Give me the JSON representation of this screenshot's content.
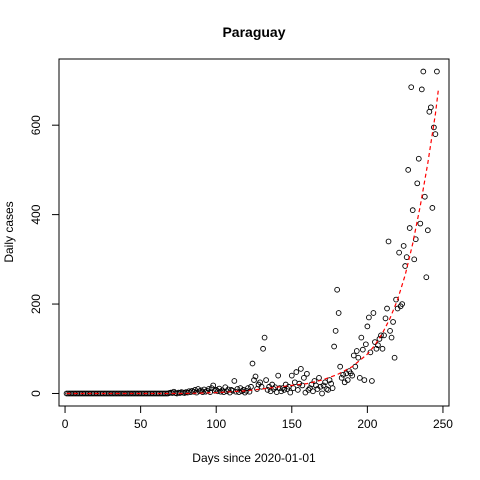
{
  "chart_data": {
    "type": "scatter",
    "title": "Paraguay",
    "xlabel": "Days since 2020-01-01",
    "ylabel": "Daily cases",
    "xlim": [
      -4,
      254
    ],
    "ylim": [
      -28,
      748
    ],
    "x_ticks": [
      0,
      50,
      100,
      150,
      200,
      250
    ],
    "y_ticks": [
      0,
      200,
      400,
      600
    ],
    "x_tick_labels": [
      "0",
      "50",
      "100",
      "150",
      "200",
      "250"
    ],
    "y_tick_labels": [
      "0",
      "200",
      "400",
      "600"
    ],
    "grid": false,
    "legend": "none",
    "series": [
      {
        "kind": "points",
        "marker": "open-circle",
        "color": "#000000",
        "points": [
          [
            1,
            0
          ],
          [
            2,
            0
          ],
          [
            3,
            0
          ],
          [
            4,
            0
          ],
          [
            5,
            0
          ],
          [
            6,
            0
          ],
          [
            7,
            0
          ],
          [
            8,
            0
          ],
          [
            9,
            0
          ],
          [
            10,
            0
          ],
          [
            11,
            0
          ],
          [
            12,
            0
          ],
          [
            13,
            0
          ],
          [
            14,
            0
          ],
          [
            15,
            0
          ],
          [
            16,
            0
          ],
          [
            17,
            0
          ],
          [
            18,
            0
          ],
          [
            19,
            0
          ],
          [
            20,
            0
          ],
          [
            21,
            0
          ],
          [
            22,
            0
          ],
          [
            23,
            0
          ],
          [
            24,
            0
          ],
          [
            25,
            0
          ],
          [
            26,
            0
          ],
          [
            27,
            0
          ],
          [
            28,
            0
          ],
          [
            29,
            0
          ],
          [
            30,
            0
          ],
          [
            31,
            0
          ],
          [
            32,
            0
          ],
          [
            33,
            0
          ],
          [
            34,
            0
          ],
          [
            35,
            0
          ],
          [
            36,
            0
          ],
          [
            37,
            0
          ],
          [
            38,
            0
          ],
          [
            39,
            0
          ],
          [
            40,
            0
          ],
          [
            41,
            0
          ],
          [
            42,
            0
          ],
          [
            43,
            0
          ],
          [
            44,
            0
          ],
          [
            45,
            0
          ],
          [
            46,
            0
          ],
          [
            47,
            0
          ],
          [
            48,
            0
          ],
          [
            49,
            0
          ],
          [
            50,
            0
          ],
          [
            51,
            0
          ],
          [
            52,
            0
          ],
          [
            53,
            0
          ],
          [
            54,
            0
          ],
          [
            55,
            0
          ],
          [
            56,
            0
          ],
          [
            57,
            0
          ],
          [
            58,
            0
          ],
          [
            59,
            0
          ],
          [
            60,
            0
          ],
          [
            61,
            0
          ],
          [
            62,
            0
          ],
          [
            63,
            0
          ],
          [
            64,
            0
          ],
          [
            65,
            0
          ],
          [
            66,
            0
          ],
          [
            67,
            0
          ],
          [
            68,
            0
          ],
          [
            69,
            1
          ],
          [
            70,
            2
          ],
          [
            71,
            1
          ],
          [
            72,
            4
          ],
          [
            73,
            1
          ],
          [
            74,
            0
          ],
          [
            75,
            2
          ],
          [
            76,
            1
          ],
          [
            77,
            3
          ],
          [
            78,
            2
          ],
          [
            79,
            1
          ],
          [
            80,
            3
          ],
          [
            81,
            2
          ],
          [
            82,
            5
          ],
          [
            83,
            3
          ],
          [
            84,
            6
          ],
          [
            85,
            4
          ],
          [
            86,
            8
          ],
          [
            87,
            2
          ],
          [
            88,
            10
          ],
          [
            89,
            5
          ],
          [
            90,
            7
          ],
          [
            91,
            3
          ],
          [
            92,
            9
          ],
          [
            93,
            4
          ],
          [
            94,
            6
          ],
          [
            95,
            10
          ],
          [
            96,
            3
          ],
          [
            97,
            12
          ],
          [
            98,
            18
          ],
          [
            99,
            6
          ],
          [
            100,
            8
          ],
          [
            101,
            5
          ],
          [
            102,
            11
          ],
          [
            103,
            4
          ],
          [
            104,
            7
          ],
          [
            105,
            3
          ],
          [
            106,
            14
          ],
          [
            107,
            5
          ],
          [
            108,
            9
          ],
          [
            109,
            2
          ],
          [
            110,
            8
          ],
          [
            111,
            6
          ],
          [
            112,
            28
          ],
          [
            113,
            4
          ],
          [
            114,
            10
          ],
          [
            115,
            3
          ],
          [
            116,
            12
          ],
          [
            117,
            5
          ],
          [
            118,
            8
          ],
          [
            119,
            2
          ],
          [
            120,
            6
          ],
          [
            121,
            12
          ],
          [
            122,
            4
          ],
          [
            123,
            15
          ],
          [
            124,
            67
          ],
          [
            125,
            30
          ],
          [
            126,
            38
          ],
          [
            127,
            10
          ],
          [
            128,
            20
          ],
          [
            129,
            25
          ],
          [
            130,
            15
          ],
          [
            131,
            100
          ],
          [
            132,
            125
          ],
          [
            133,
            30
          ],
          [
            134,
            8
          ],
          [
            135,
            15
          ],
          [
            136,
            5
          ],
          [
            137,
            20
          ],
          [
            138,
            10
          ],
          [
            139,
            14
          ],
          [
            140,
            3
          ],
          [
            141,
            40
          ],
          [
            142,
            12
          ],
          [
            143,
            5
          ],
          [
            144,
            12
          ],
          [
            145,
            8
          ],
          [
            146,
            20
          ],
          [
            147,
            10
          ],
          [
            148,
            15
          ],
          [
            149,
            2
          ],
          [
            150,
            40
          ],
          [
            151,
            12
          ],
          [
            152,
            25
          ],
          [
            153,
            48
          ],
          [
            154,
            8
          ],
          [
            155,
            22
          ],
          [
            156,
            55
          ],
          [
            157,
            18
          ],
          [
            158,
            35
          ],
          [
            159,
            2
          ],
          [
            160,
            44
          ],
          [
            161,
            8
          ],
          [
            162,
            12
          ],
          [
            163,
            20
          ],
          [
            164,
            5
          ],
          [
            165,
            28
          ],
          [
            166,
            18
          ],
          [
            167,
            10
          ],
          [
            168,
            35
          ],
          [
            169,
            15
          ],
          [
            170,
            0
          ],
          [
            171,
            18
          ],
          [
            172,
            25
          ],
          [
            173,
            10
          ],
          [
            174,
            8
          ],
          [
            175,
            30
          ],
          [
            176,
            22
          ],
          [
            177,
            12
          ],
          [
            178,
            105
          ],
          [
            179,
            140
          ],
          [
            180,
            232
          ],
          [
            181,
            180
          ],
          [
            182,
            60
          ],
          [
            183,
            35
          ],
          [
            184,
            42
          ],
          [
            185,
            25
          ],
          [
            186,
            45
          ],
          [
            187,
            30
          ],
          [
            188,
            50
          ],
          [
            189,
            45
          ],
          [
            190,
            40
          ],
          [
            191,
            85
          ],
          [
            192,
            60
          ],
          [
            193,
            95
          ],
          [
            194,
            80
          ],
          [
            195,
            35
          ],
          [
            196,
            125
          ],
          [
            197,
            98
          ],
          [
            198,
            30
          ],
          [
            199,
            110
          ],
          [
            200,
            150
          ],
          [
            201,
            170
          ],
          [
            202,
            92
          ],
          [
            203,
            28
          ],
          [
            204,
            180
          ],
          [
            205,
            115
          ],
          [
            206,
            100
          ],
          [
            207,
            108
          ],
          [
            208,
            122
          ],
          [
            209,
            130
          ],
          [
            210,
            100
          ],
          [
            211,
            130
          ],
          [
            212,
            168
          ],
          [
            213,
            190
          ],
          [
            214,
            340
          ],
          [
            215,
            140
          ],
          [
            216,
            125
          ],
          [
            217,
            160
          ],
          [
            218,
            80
          ],
          [
            219,
            210
          ],
          [
            220,
            190
          ],
          [
            221,
            315
          ],
          [
            222,
            195
          ],
          [
            223,
            200
          ],
          [
            224,
            330
          ],
          [
            225,
            285
          ],
          [
            226,
            305
          ],
          [
            227,
            500
          ],
          [
            228,
            370
          ],
          [
            229,
            685
          ],
          [
            230,
            410
          ],
          [
            231,
            300
          ],
          [
            232,
            345
          ],
          [
            233,
            470
          ],
          [
            234,
            525
          ],
          [
            235,
            380
          ],
          [
            236,
            680
          ],
          [
            237,
            720
          ],
          [
            238,
            440
          ],
          [
            239,
            260
          ],
          [
            240,
            365
          ],
          [
            241,
            630
          ],
          [
            242,
            640
          ],
          [
            243,
            415
          ],
          [
            244,
            595
          ],
          [
            245,
            580
          ],
          [
            246,
            720
          ]
        ]
      },
      {
        "kind": "fit",
        "line": "dashed",
        "color": "#ff0000",
        "points": [
          [
            1,
            0
          ],
          [
            30,
            0
          ],
          [
            60,
            0
          ],
          [
            80,
            0
          ],
          [
            100,
            2
          ],
          [
            120,
            6
          ],
          [
            130,
            10
          ],
          [
            140,
            14
          ],
          [
            150,
            18
          ],
          [
            160,
            22
          ],
          [
            170,
            30
          ],
          [
            180,
            42
          ],
          [
            190,
            60
          ],
          [
            200,
            88
          ],
          [
            205,
            108
          ],
          [
            210,
            135
          ],
          [
            215,
            168
          ],
          [
            220,
            210
          ],
          [
            225,
            265
          ],
          [
            230,
            335
          ],
          [
            235,
            420
          ],
          [
            240,
            515
          ],
          [
            245,
            625
          ],
          [
            247,
            680
          ]
        ]
      }
    ]
  }
}
